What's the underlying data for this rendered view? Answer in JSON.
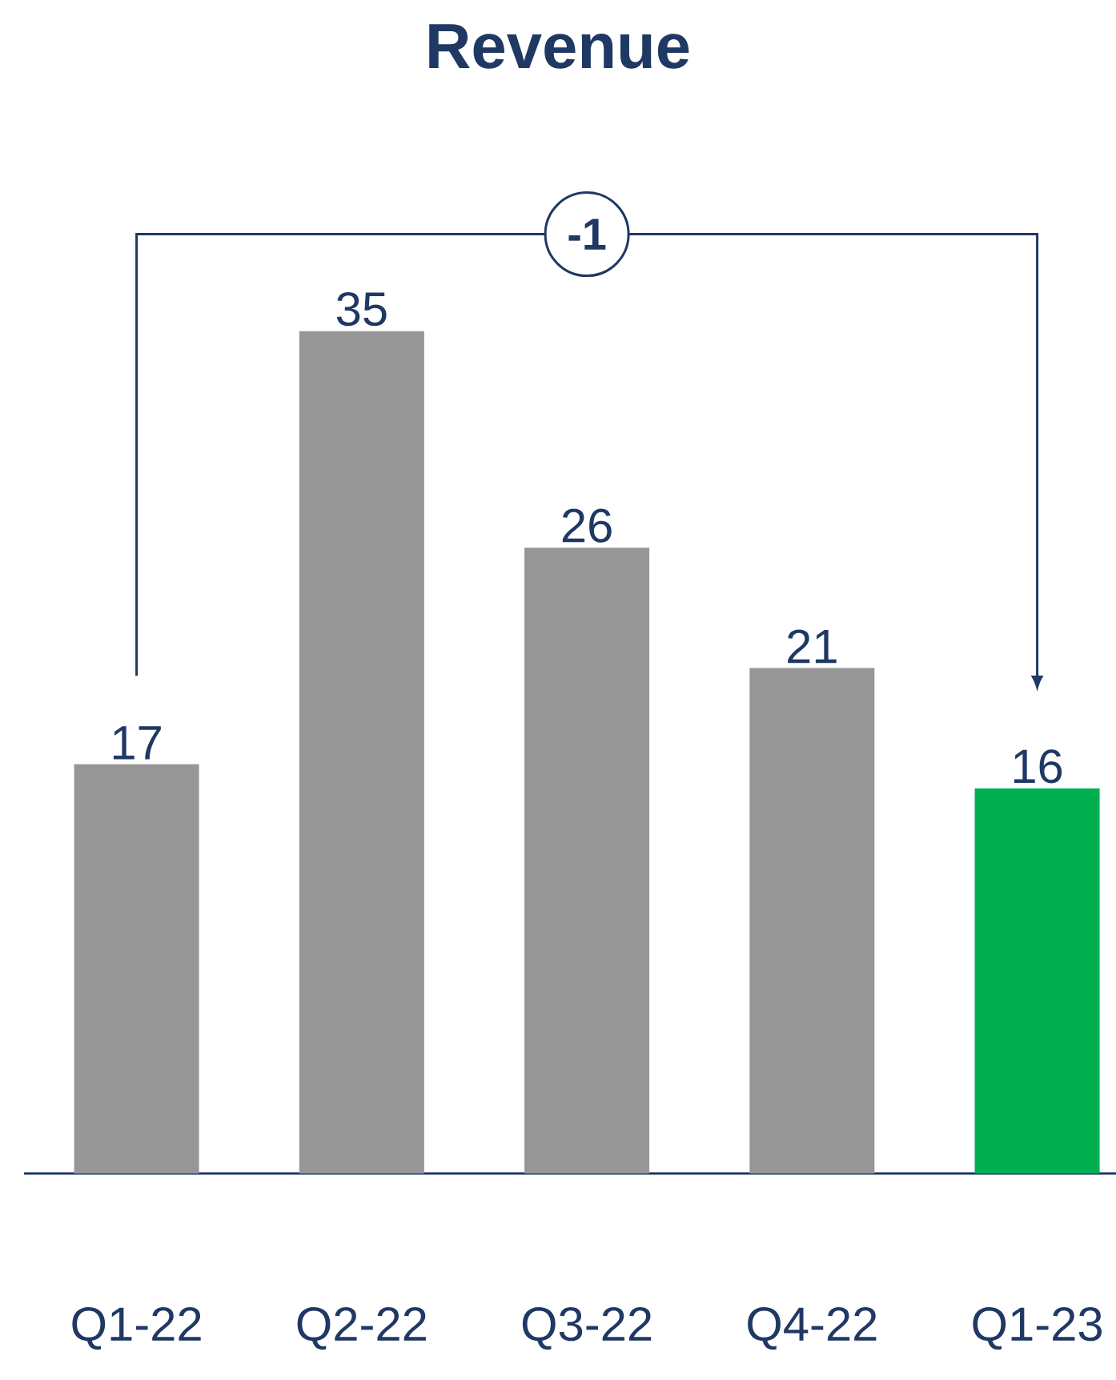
{
  "chart_data": {
    "type": "bar",
    "title": "Revenue",
    "categories": [
      "Q1-22",
      "Q2-22",
      "Q3-22",
      "Q4-22",
      "Q1-23"
    ],
    "values": [
      17,
      35,
      26,
      21,
      16
    ],
    "colors": [
      "#969696",
      "#969696",
      "#969696",
      "#969696",
      "#00b050"
    ],
    "data_labels": true,
    "annotations": [
      "-1"
    ]
  }
}
